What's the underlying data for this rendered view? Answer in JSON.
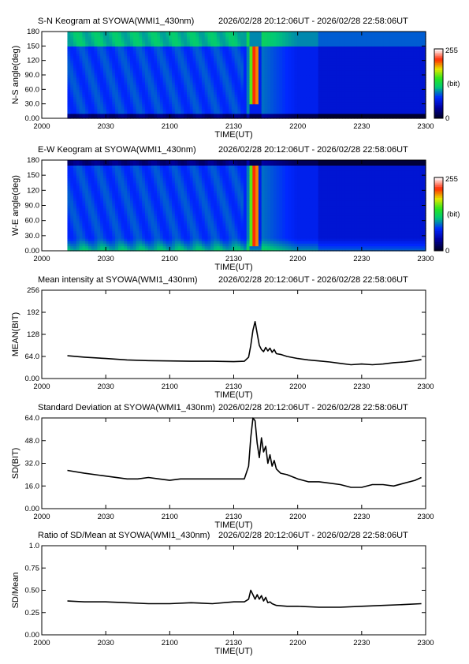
{
  "chart_data": [
    {
      "type": "heatmap",
      "title": "S-N Keogram at SYOWA(WMI1_430nm)",
      "time_range": "2026/02/28 20:12:06UT - 2026/02/28 22:58:06UT",
      "xlabel": "TIME(UT)",
      "ylabel": "N-S angle(deg)",
      "x_ticks": [
        "2000",
        "2030",
        "2100",
        "2130",
        "2200",
        "2230",
        "2300"
      ],
      "y_ticks": [
        "0.00",
        "30.0",
        "60.0",
        "90.0",
        "120",
        "150",
        "180"
      ],
      "xlim": [
        0,
        180
      ],
      "ylim": [
        0,
        180
      ],
      "data_start": 12,
      "colorbar": {
        "labels": [
          "255",
          "(bit)",
          "0"
        ],
        "range": [
          0,
          255
        ]
      },
      "features": {
        "bright_arc_time": [
          98,
          102
        ],
        "bright_arc_angle": [
          30,
          150
        ]
      }
    },
    {
      "type": "heatmap",
      "title": "E-W Keogram at SYOWA(WMI1_430nm)",
      "time_range": "2026/02/28 20:12:06UT - 2026/02/28 22:58:06UT",
      "xlabel": "TIME(UT)",
      "ylabel": "W-E angle(deg)",
      "x_ticks": [
        "2000",
        "2030",
        "2100",
        "2130",
        "2200",
        "2230",
        "2300"
      ],
      "y_ticks": [
        "0.00",
        "30.0",
        "60.0",
        "90.0",
        "120",
        "150",
        "180"
      ],
      "xlim": [
        0,
        180
      ],
      "ylim": [
        0,
        180
      ],
      "data_start": 12,
      "colorbar": {
        "labels": [
          "255",
          "(bit)",
          "0"
        ],
        "range": [
          0,
          255
        ]
      },
      "features": {
        "bright_arc_time": [
          98,
          102
        ],
        "bright_arc_angle": [
          10,
          170
        ]
      }
    },
    {
      "type": "line",
      "title": "Mean intensity at SYOWA(WMI1_430nm)",
      "time_range": "2026/02/28 20:12:06UT - 2026/02/28 22:58:06UT",
      "xlabel": "TIME(UT)",
      "ylabel": "MEAN(BIT)",
      "x_ticks": [
        "2000",
        "2030",
        "2100",
        "2130",
        "2200",
        "2230",
        "2300"
      ],
      "y_ticks": [
        "0.00",
        "64.0",
        "128",
        "192",
        "256"
      ],
      "xlim": [
        0,
        180
      ],
      "ylim": [
        0,
        256
      ],
      "series": [
        {
          "x": [
            12,
            20,
            30,
            40,
            50,
            60,
            70,
            80,
            90,
            95,
            97,
            98,
            99,
            100,
            101,
            102,
            103,
            104,
            105,
            106,
            107,
            108,
            109,
            110,
            112,
            115,
            120,
            125,
            130,
            135,
            140,
            145,
            150,
            155,
            160,
            165,
            170,
            175,
            178
          ],
          "values": [
            66,
            62,
            58,
            54,
            52,
            51,
            50,
            50,
            49,
            50,
            62,
            95,
            140,
            165,
            130,
            96,
            84,
            78,
            90,
            80,
            88,
            76,
            84,
            72,
            70,
            64,
            58,
            54,
            51,
            48,
            44,
            40,
            42,
            40,
            42,
            46,
            48,
            52,
            55
          ]
        }
      ]
    },
    {
      "type": "line",
      "title": "Standard Deviation at SYOWA(WMI1_430nm)",
      "time_range": "2026/02/28 20:12:06UT - 2026/02/28 22:58:06UT",
      "xlabel": "TIME(UT)",
      "ylabel": "SD(BIT)",
      "x_ticks": [
        "2000",
        "2030",
        "2100",
        "2130",
        "2200",
        "2230",
        "2300"
      ],
      "y_ticks": [
        "0.00",
        "16.0",
        "32.0",
        "48.0",
        "64.0"
      ],
      "xlim": [
        0,
        180
      ],
      "ylim": [
        0,
        64
      ],
      "series": [
        {
          "x": [
            12,
            20,
            30,
            40,
            45,
            50,
            55,
            60,
            65,
            70,
            75,
            80,
            85,
            90,
            95,
            97,
            98,
            99,
            100,
            101,
            102,
            103,
            104,
            105,
            106,
            107,
            108,
            109,
            110,
            112,
            115,
            120,
            125,
            130,
            135,
            140,
            145,
            150,
            155,
            160,
            165,
            170,
            175,
            178
          ],
          "values": [
            27,
            25,
            23,
            21,
            21,
            22,
            21,
            20,
            21,
            21,
            21,
            21,
            21,
            21,
            21,
            30,
            50,
            64,
            62,
            46,
            36,
            50,
            40,
            44,
            32,
            38,
            30,
            34,
            28,
            25,
            24,
            21,
            19,
            19,
            18,
            17,
            15,
            15,
            17,
            17,
            16,
            18,
            20,
            22
          ]
        }
      ]
    },
    {
      "type": "line",
      "title": "Ratio of SD/Mean at SYOWA(WMI1_430nm)",
      "time_range": "2026/02/28 20:12:06UT - 2026/02/28 22:58:06UT",
      "xlabel": "TIME(UT)",
      "ylabel": "SD/Mean",
      "x_ticks": [
        "2000",
        "2030",
        "2100",
        "2130",
        "2200",
        "2230",
        "2300"
      ],
      "y_ticks": [
        "0.00",
        "0.25",
        "0.50",
        "0.75",
        "1.0"
      ],
      "xlim": [
        0,
        180
      ],
      "ylim": [
        0,
        1.0
      ],
      "series": [
        {
          "x": [
            12,
            20,
            30,
            40,
            50,
            60,
            70,
            80,
            90,
            95,
            97,
            98,
            99,
            100,
            101,
            102,
            103,
            104,
            105,
            106,
            107,
            108,
            110,
            115,
            120,
            130,
            140,
            150,
            160,
            170,
            178
          ],
          "values": [
            0.38,
            0.37,
            0.37,
            0.36,
            0.35,
            0.35,
            0.36,
            0.35,
            0.37,
            0.37,
            0.4,
            0.5,
            0.45,
            0.4,
            0.45,
            0.4,
            0.44,
            0.38,
            0.42,
            0.36,
            0.37,
            0.35,
            0.33,
            0.32,
            0.32,
            0.31,
            0.31,
            0.32,
            0.33,
            0.34,
            0.35
          ]
        }
      ]
    }
  ]
}
